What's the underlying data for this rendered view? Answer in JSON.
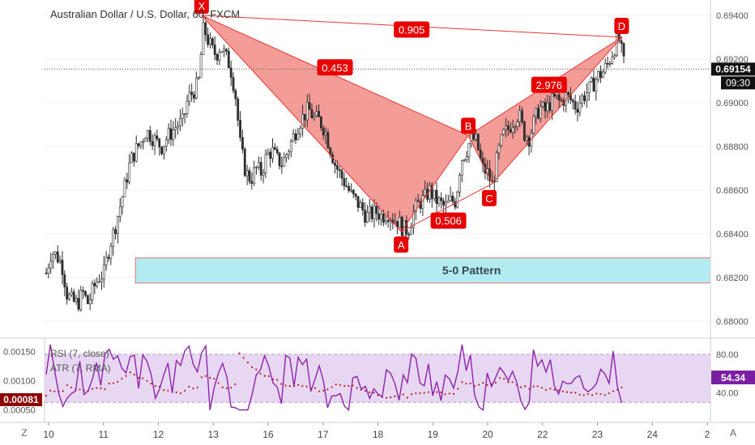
{
  "header": {
    "title": "Australian Dollar / U.S. Dollar, 60, FXCM"
  },
  "price_axis": {
    "ticks": [
      "0.69400",
      "0.69200",
      "0.69000",
      "0.68800",
      "0.68600",
      "0.68400",
      "0.68200",
      "0.68000"
    ],
    "last_price": "0.69154",
    "countdown": "09:30"
  },
  "indicator_axis": {
    "atr_ticks": [
      "0.00150",
      "0.00100",
      "0.00050"
    ],
    "atr_value": "0.00081",
    "rsi_ticks": [
      "80.00",
      "40.00"
    ],
    "rsi_value": "54.34"
  },
  "indicators": {
    "rsi_label": "RSI (7, close)",
    "atr_label": "ATR (7, RMA)"
  },
  "time_axis": {
    "labels": [
      "10",
      "11",
      "12",
      "13",
      "16",
      "17",
      "18",
      "19",
      "20",
      "22",
      "23",
      "24",
      "2"
    ],
    "left_btn": "Z",
    "right_btn": "A"
  },
  "pattern": {
    "name": "5-0 Pattern",
    "points": [
      "X",
      "A",
      "B",
      "C",
      "D"
    ],
    "ratios": [
      "0.905",
      "0.453",
      "2.976",
      "0.506"
    ]
  },
  "colors": {
    "up": "#2d2d2d",
    "down": "#2d2d2d",
    "pattern_fill": "#f28b86",
    "pattern_line": "#e53935",
    "label_bg": "#e80000",
    "zone_fill": "#b2ebf2",
    "rsi_line": "#8e24aa",
    "rsi_band": "#e1cdf0",
    "atr_dots": "#b71c1c"
  },
  "chart_data": {
    "type": "candlestick",
    "title": "Australian Dollar / U.S. Dollar, 60, FXCM",
    "ylim": [
      0.6795,
      0.6955
    ],
    "close_path": [
      [
        0,
        0.6822
      ],
      [
        5,
        0.6832
      ],
      [
        10,
        0.683
      ],
      [
        15,
        0.6826
      ],
      [
        20,
        0.6812
      ],
      [
        25,
        0.6809
      ],
      [
        30,
        0.6808
      ],
      [
        35,
        0.6813
      ],
      [
        40,
        0.6808
      ],
      [
        45,
        0.6815
      ],
      [
        50,
        0.682
      ],
      [
        55,
        0.6822
      ],
      [
        60,
        0.6834
      ],
      [
        65,
        0.6842
      ],
      [
        70,
        0.6852
      ],
      [
        75,
        0.6862
      ],
      [
        80,
        0.6873
      ],
      [
        85,
        0.6878
      ],
      [
        90,
        0.6882
      ],
      [
        95,
        0.6887
      ],
      [
        100,
        0.6885
      ],
      [
        105,
        0.6882
      ],
      [
        110,
        0.688
      ],
      [
        115,
        0.6884
      ],
      [
        120,
        0.6887
      ],
      [
        125,
        0.689
      ],
      [
        130,
        0.6891
      ],
      [
        135,
        0.6902
      ],
      [
        140,
        0.6905
      ],
      [
        145,
        0.6909
      ],
      [
        148,
        0.6925
      ],
      [
        150,
        0.6935
      ],
      [
        153,
        0.693
      ],
      [
        158,
        0.6924
      ],
      [
        162,
        0.6922
      ],
      [
        166,
        0.6926
      ],
      [
        170,
        0.6922
      ],
      [
        175,
        0.6917
      ],
      [
        180,
        0.6905
      ],
      [
        185,
        0.688
      ],
      [
        190,
        0.6868
      ],
      [
        195,
        0.6865
      ],
      [
        200,
        0.687
      ],
      [
        205,
        0.6868
      ],
      [
        210,
        0.6876
      ],
      [
        215,
        0.6878
      ],
      [
        220,
        0.6874
      ],
      [
        225,
        0.6872
      ],
      [
        230,
        0.6878
      ],
      [
        235,
        0.6884
      ],
      [
        240,
        0.689
      ],
      [
        245,
        0.6894
      ],
      [
        250,
        0.6897
      ],
      [
        255,
        0.6893
      ],
      [
        260,
        0.6892
      ],
      [
        265,
        0.6888
      ],
      [
        270,
        0.688
      ],
      [
        275,
        0.6872
      ],
      [
        280,
        0.6867
      ],
      [
        285,
        0.6863
      ],
      [
        290,
        0.6858
      ],
      [
        295,
        0.6855
      ],
      [
        300,
        0.6852
      ],
      [
        305,
        0.6848
      ],
      [
        310,
        0.6849
      ],
      [
        315,
        0.685
      ],
      [
        320,
        0.6848
      ],
      [
        325,
        0.685
      ],
      [
        330,
        0.6847
      ],
      [
        335,
        0.6846
      ],
      [
        340,
        0.6842
      ],
      [
        345,
        0.6842
      ],
      [
        350,
        0.685
      ],
      [
        355,
        0.6854
      ],
      [
        360,
        0.6856
      ],
      [
        365,
        0.686
      ],
      [
        370,
        0.6856
      ],
      [
        375,
        0.6854
      ],
      [
        380,
        0.6852
      ],
      [
        385,
        0.6855
      ],
      [
        390,
        0.6855
      ],
      [
        395,
        0.6874
      ],
      [
        400,
        0.6878
      ],
      [
        405,
        0.6884
      ],
      [
        410,
        0.6882
      ],
      [
        415,
        0.687
      ],
      [
        420,
        0.6868
      ],
      [
        425,
        0.6862
      ],
      [
        430,
        0.6876
      ],
      [
        435,
        0.6885
      ],
      [
        440,
        0.6888
      ],
      [
        445,
        0.6892
      ],
      [
        450,
        0.6895
      ],
      [
        455,
        0.6886
      ],
      [
        460,
        0.6884
      ],
      [
        465,
        0.6892
      ],
      [
        470,
        0.6898
      ],
      [
        475,
        0.6896
      ],
      [
        480,
        0.69
      ],
      [
        485,
        0.6902
      ],
      [
        490,
        0.69
      ],
      [
        495,
        0.6903
      ],
      [
        500,
        0.6901
      ],
      [
        505,
        0.6898
      ],
      [
        510,
        0.6902
      ],
      [
        515,
        0.6905
      ],
      [
        520,
        0.6908
      ],
      [
        525,
        0.6912
      ],
      [
        530,
        0.6914
      ],
      [
        535,
        0.6918
      ],
      [
        540,
        0.6924
      ],
      [
        545,
        0.693
      ],
      [
        550,
        0.6918
      ]
    ],
    "pattern_points": [
      {
        "label": "X",
        "time": 148,
        "price": 0.694
      },
      {
        "label": "A",
        "time": 338,
        "price": 0.6841
      },
      {
        "label": "B",
        "time": 402,
        "price": 0.6885
      },
      {
        "label": "C",
        "time": 425,
        "price": 0.6863
      },
      {
        "label": "D",
        "time": 548,
        "price": 0.693
      }
    ],
    "zone": {
      "label": "5-0 Pattern",
      "time_from": 85,
      "price_low": 0.68175,
      "price_high": 0.6829
    },
    "rsi": {
      "ylim": [
        10,
        95
      ],
      "band": [
        30,
        80
      ]
    },
    "atr": {
      "ylim": [
        0.0003,
        0.0017
      ]
    }
  }
}
